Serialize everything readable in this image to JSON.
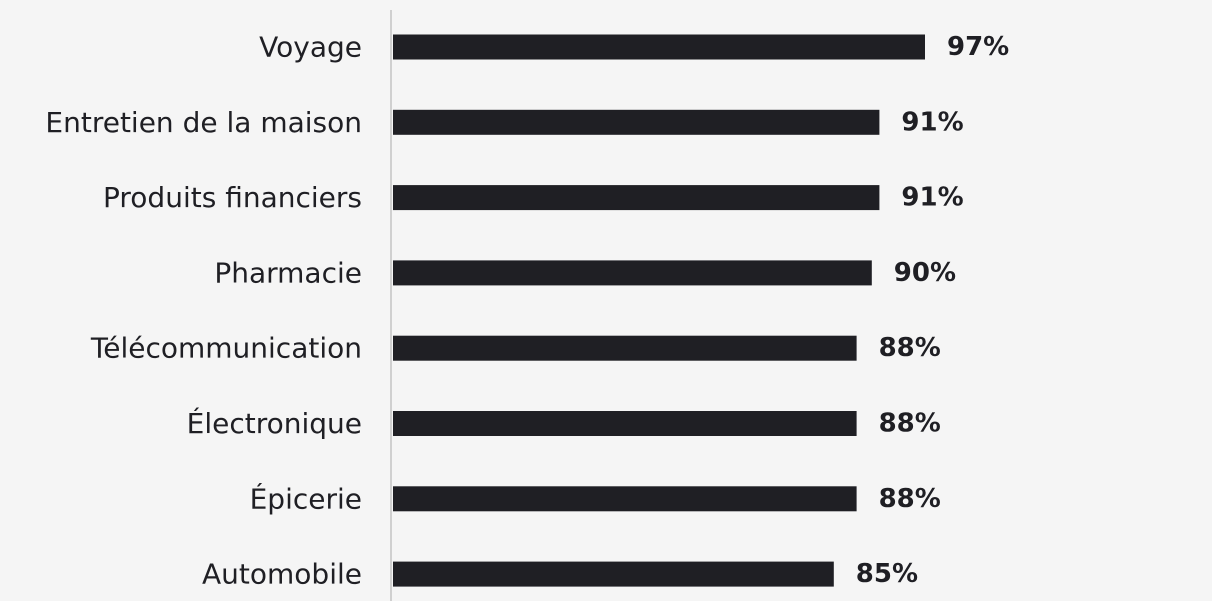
{
  "chart_data": {
    "type": "bar",
    "orientation": "horizontal",
    "categories": [
      "Voyage",
      "Entretien de la maison",
      "Produits financiers",
      "Pharmacie",
      "Télécommunication",
      "Électronique",
      "Épicerie",
      "Automobile"
    ],
    "values": [
      97,
      91,
      91,
      90,
      88,
      88,
      88,
      85
    ],
    "value_labels": [
      "97%",
      "91%",
      "91%",
      "90%",
      "88%",
      "88%",
      "88%",
      "85%"
    ],
    "unit": "%",
    "title": "",
    "xlabel": "",
    "ylabel": "",
    "grid": false,
    "legend": "none",
    "colors": {
      "bar": "#1f1f24",
      "axis": "#d0d0d0",
      "background": "#f5f5f5",
      "text": "#1f1f24"
    }
  }
}
